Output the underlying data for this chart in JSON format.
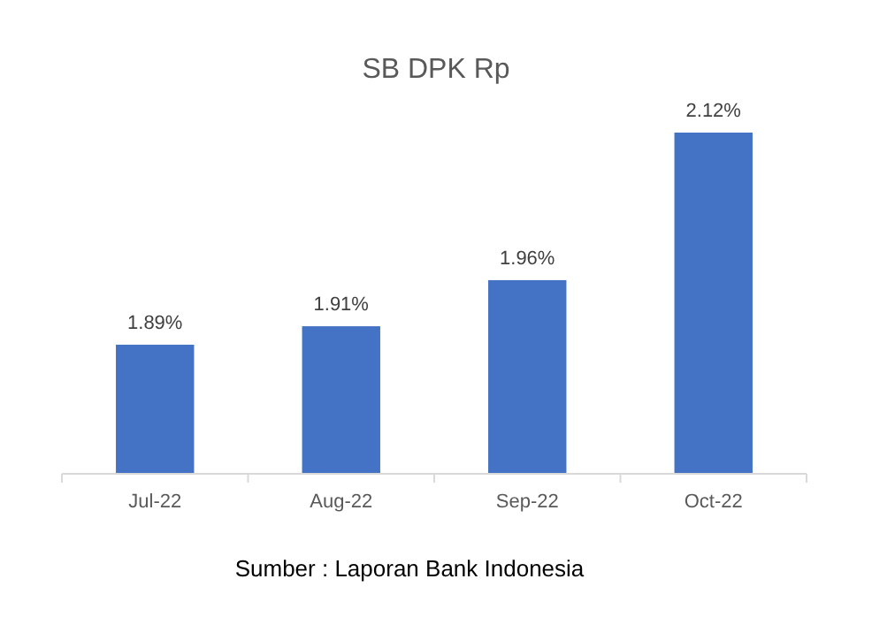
{
  "chart_data": {
    "type": "bar",
    "title": "SB DPK Rp",
    "categories": [
      "Jul-22",
      "Aug-22",
      "Sep-22",
      "Oct-22"
    ],
    "values": [
      1.89,
      1.91,
      1.96,
      2.12
    ],
    "value_labels": [
      "1.89%",
      "1.91%",
      "1.96%",
      "2.12%"
    ],
    "color": "#4472c4",
    "ylim": [
      1.75,
      2.12
    ],
    "grid": false,
    "annotations": [
      "Sumber : Laporan Bank Indonesia"
    ]
  }
}
